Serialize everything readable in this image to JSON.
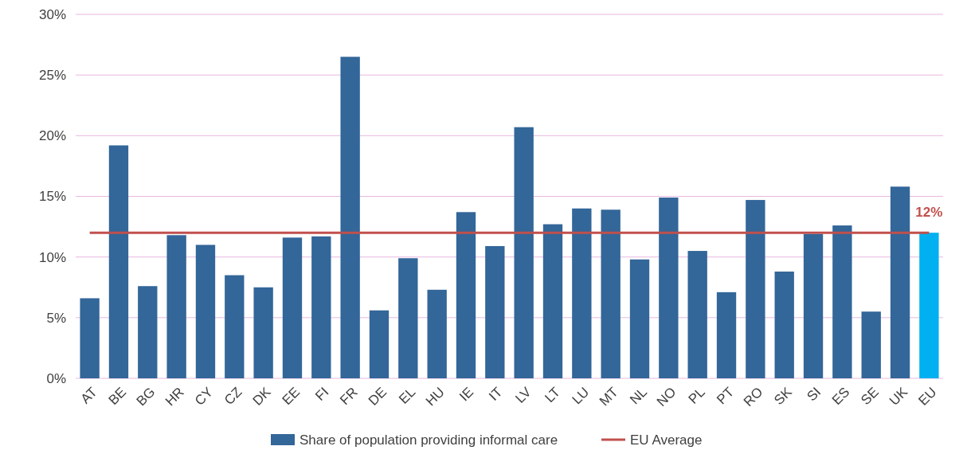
{
  "chart_data": {
    "type": "bar",
    "categories": [
      "AT",
      "BE",
      "BG",
      "HR",
      "CY",
      "CZ",
      "DK",
      "EE",
      "FI",
      "FR",
      "DE",
      "EL",
      "HU",
      "IE",
      "IT",
      "LV",
      "LT",
      "LU",
      "MT",
      "NL",
      "NO",
      "PL",
      "PT",
      "RO",
      "SK",
      "SI",
      "ES",
      "SE",
      "UK",
      "EU"
    ],
    "series": [
      {
        "name": "Share of population providing informal care",
        "color": "#336699",
        "colors": [
          "#336699",
          "#336699",
          "#336699",
          "#336699",
          "#336699",
          "#336699",
          "#336699",
          "#336699",
          "#336699",
          "#336699",
          "#336699",
          "#336699",
          "#336699",
          "#336699",
          "#336699",
          "#336699",
          "#336699",
          "#336699",
          "#336699",
          "#336699",
          "#336699",
          "#336699",
          "#336699",
          "#336699",
          "#336699",
          "#336699",
          "#336699",
          "#336699",
          "#336699",
          "#00b0f0"
        ],
        "values": [
          6.6,
          19.2,
          7.6,
          11.8,
          11.0,
          8.5,
          7.5,
          11.6,
          11.7,
          26.5,
          5.6,
          9.9,
          7.3,
          13.7,
          10.9,
          20.7,
          12.7,
          14.0,
          13.9,
          9.8,
          14.9,
          10.5,
          7.1,
          14.7,
          8.8,
          11.9,
          12.6,
          5.5,
          15.8,
          12.0
        ]
      },
      {
        "name": "EU Average",
        "type": "line",
        "color": "#c0504d",
        "values": [
          12,
          12,
          12,
          12,
          12,
          12,
          12,
          12,
          12,
          12,
          12,
          12,
          12,
          12,
          12,
          12,
          12,
          12,
          12,
          12,
          12,
          12,
          12,
          12,
          12,
          12,
          12,
          12,
          12,
          12
        ]
      }
    ],
    "ylim": [
      0,
      30
    ],
    "yticks": [
      {
        "value": 0,
        "label": "0%"
      },
      {
        "value": 5,
        "label": "5%"
      },
      {
        "value": 10,
        "label": "10%"
      },
      {
        "value": 15,
        "label": "15%"
      },
      {
        "value": 20,
        "label": "20%"
      },
      {
        "value": 25,
        "label": "25%"
      },
      {
        "value": 30,
        "label": "30%"
      }
    ],
    "grid": "y",
    "legend": "bottom",
    "annotations": [
      {
        "text": "12%",
        "x": "EU",
        "y": 12
      }
    ]
  }
}
